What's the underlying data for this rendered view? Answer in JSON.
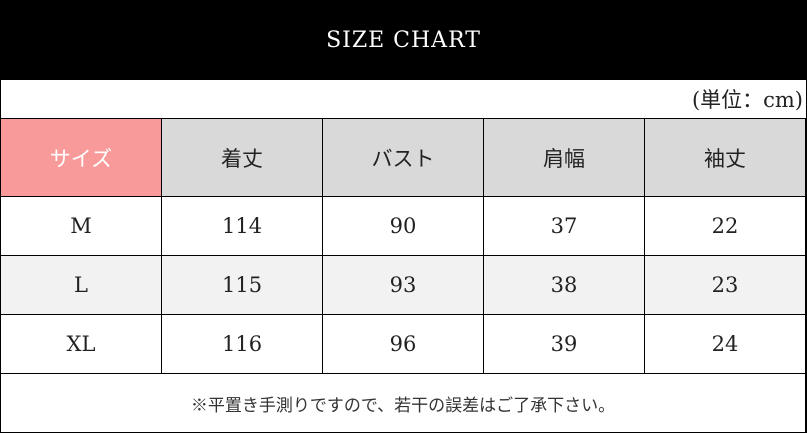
{
  "title": "SIZE CHART",
  "unit": "(単位：cm)",
  "colors": {
    "size_header": "#f99a9a",
    "header": "#d9d9d9",
    "alt_row": "#f2f2f2",
    "title_bar": "#000000"
  },
  "headers": [
    "サイズ",
    "着丈",
    "バスト",
    "肩幅",
    "袖丈"
  ],
  "rows": [
    [
      "M",
      "114",
      "90",
      "37",
      "22"
    ],
    [
      "L",
      "115",
      "93",
      "38",
      "23"
    ],
    [
      "XL",
      "116",
      "96",
      "39",
      "24"
    ]
  ],
  "note": "※平置き手測りですので、若干の誤差はご了承下さい。"
}
